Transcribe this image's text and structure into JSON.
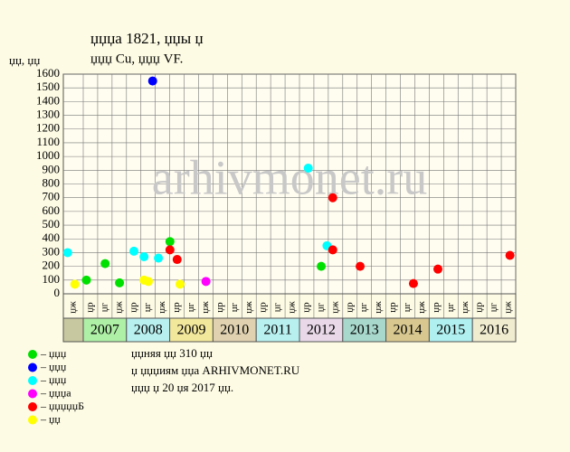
{
  "chart_data": {
    "type": "scatter",
    "title": "џџџа 1821, џџы џ",
    "subtitle": "џџџ Cu, џџџ VF.",
    "y_label": "џџ, џџ",
    "watermark": "arhivmonet.ru",
    "categories": [
      "џж",
      "џр",
      "џг",
      "џж",
      "џр",
      "џг",
      "џж",
      "џр",
      "џг",
      "џж",
      "џр",
      "џг",
      "џж",
      "џр",
      "џг",
      "џж",
      "џр",
      "џг",
      "џж",
      "џр",
      "џг",
      "џж",
      "џр",
      "џг",
      "џж",
      "џр",
      "џг",
      "џж",
      "џр",
      "џг",
      "џж"
    ],
    "years": [
      "2007",
      "2008",
      "2009",
      "2010",
      "2011",
      "2012",
      "2013",
      "2014",
      "2015",
      "2016"
    ],
    "year_colors": [
      "#aef0a6",
      "#b8f0f0",
      "#f2e89c",
      "#e0d2b0",
      "#b8f0f0",
      "#e8d8e8",
      "#a8d8cc",
      "#d8c890",
      "#b0f0f0",
      "#f0ecd0"
    ],
    "notes": [
      "џџняя џџ 310 џџ",
      "џ џџџиям џџа ARHIVMONET.RU",
      "џџџ џ 20 џя 2017 џџ."
    ],
    "xlim": [
      -0.4,
      31
    ],
    "ylim": [
      0,
      1600
    ],
    "yticks": [
      0,
      100,
      200,
      300,
      400,
      500,
      600,
      700,
      800,
      900,
      1000,
      1100,
      1200,
      1300,
      1400,
      1500,
      1600
    ],
    "grid": true,
    "series": [
      {
        "name": "– џџџ",
        "color": "#00e000",
        "x": [
          1.2,
          2.5,
          3.5,
          7.0,
          17.5
        ],
        "values": [
          100,
          220,
          80,
          380,
          200
        ]
      },
      {
        "name": "– џџџ",
        "color": "#0000ff",
        "x": [
          5.8
        ],
        "values": [
          1550
        ]
      },
      {
        "name": "– џџџ",
        "color": "#00ffff",
        "x": [
          -0.1,
          4.5,
          5.2,
          6.2,
          16.6,
          17.9
        ],
        "values": [
          300,
          310,
          270,
          260,
          915,
          350
        ]
      },
      {
        "name": "– џџџа",
        "color": "#ff00ff",
        "x": [
          9.5
        ],
        "values": [
          90
        ]
      },
      {
        "name": "– џџџџџБ",
        "color": "#ff0000",
        "x": [
          7.0,
          7.5,
          18.3,
          18.3,
          20.2,
          23.9,
          25.6,
          30.6
        ],
        "values": [
          320,
          250,
          700,
          320,
          200,
          75,
          180,
          280
        ]
      },
      {
        "name": "– џџ",
        "color": "#ffff00",
        "x": [
          0.4,
          5.2,
          5.5,
          7.7
        ],
        "values": [
          70,
          100,
          90,
          70
        ]
      }
    ]
  }
}
